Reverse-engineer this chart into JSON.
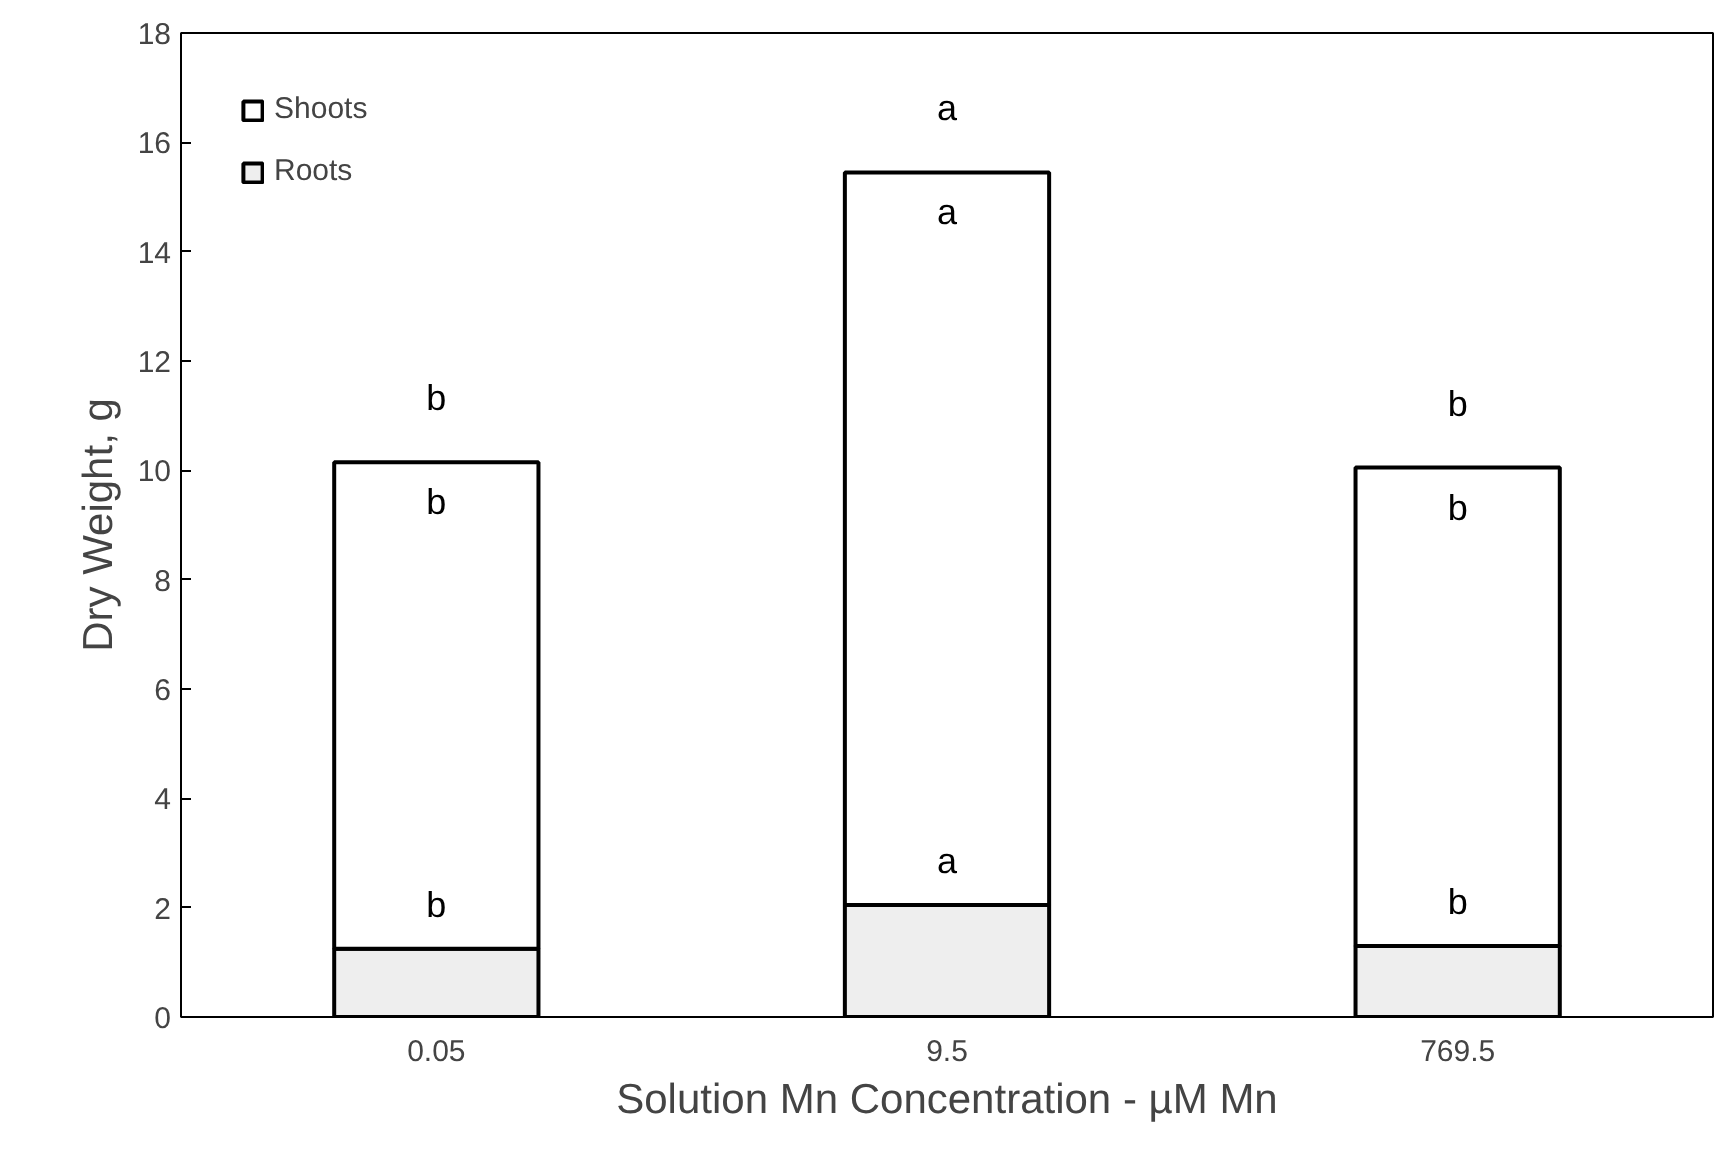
{
  "chart_data": {
    "type": "bar",
    "stacked": true,
    "xlabel": "Solution Mn Concentration - µM Mn",
    "ylabel": "Dry Weight, g",
    "categories": [
      "0.05",
      "9.5",
      "769.5"
    ],
    "series": [
      {
        "name": "Roots",
        "color": "#eeeeee",
        "values": [
          1.25,
          2.05,
          1.3
        ],
        "value_labels": [
          "b",
          "a",
          "b"
        ]
      },
      {
        "name": "Shoots",
        "color": "#ffffff",
        "values": [
          8.9,
          13.4,
          8.75
        ],
        "value_labels": [
          "b",
          "a",
          "b"
        ]
      }
    ],
    "totals": [
      "b",
      "a",
      "b"
    ],
    "ylim": [
      0,
      18
    ],
    "yticks": [
      0,
      2,
      4,
      6,
      8,
      10,
      12,
      14,
      16,
      18
    ],
    "grid": false,
    "legend": "top left"
  }
}
